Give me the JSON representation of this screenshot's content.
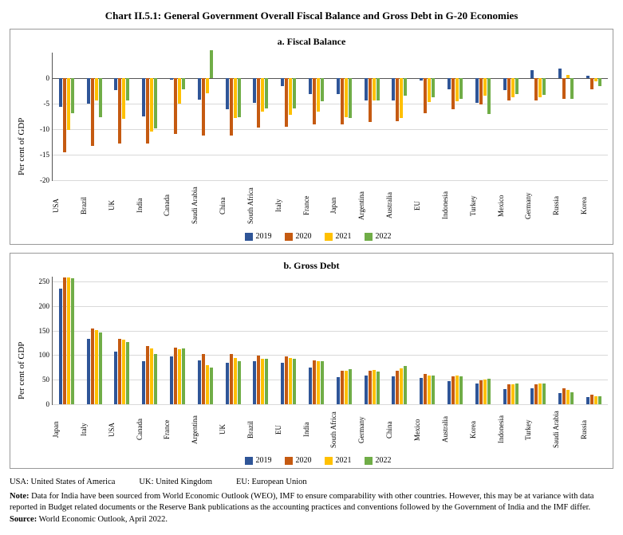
{
  "title": "Chart II.5.1: General Government Overall Fiscal Balance and Gross Debt in G-20 Economies",
  "colors": {
    "2019": "#2f5597",
    "2020": "#c55a11",
    "2021": "#ffc000",
    "2022": "#70ad47",
    "grid": "#d9d9d9",
    "border": "#999999"
  },
  "legend": [
    {
      "label": "2019",
      "colorKey": "2019"
    },
    {
      "label": "2020",
      "colorKey": "2020"
    },
    {
      "label": "2021",
      "colorKey": "2021"
    },
    {
      "label": "2022",
      "colorKey": "2022"
    }
  ],
  "chartA": {
    "subtitle": "a. Fiscal Balance",
    "ylabel": "Per cent of GDP",
    "ylim": [
      -20,
      5
    ],
    "yticks": [
      -20,
      -15,
      -10,
      -5,
      0
    ],
    "countries": [
      "USA",
      "Brazil",
      "UK",
      "India",
      "Canada",
      "Saudi Arabia",
      "China",
      "South Africa",
      "Italy",
      "France",
      "Japan",
      "Argentina",
      "Australia",
      "EU",
      "Indonesia",
      "Turkey",
      "Mexico",
      "Germany",
      "Russia",
      "Korea"
    ],
    "series": {
      "2019": [
        -5.7,
        -5.0,
        -2.3,
        -7.5,
        -0.3,
        -4.2,
        -6.1,
        -4.8,
        -1.5,
        -3.1,
        -3.1,
        -4.4,
        -4.4,
        -0.5,
        -2.2,
        -4.8,
        -2.3,
        1.5,
        1.9,
        0.4
      ],
      "2020": [
        -14.5,
        -13.3,
        -12.8,
        -12.8,
        -10.9,
        -11.3,
        -11.2,
        -9.7,
        -9.6,
        -9.1,
        -9.0,
        -8.6,
        -8.5,
        -6.9,
        -6.1,
        -5.1,
        -4.4,
        -4.3,
        -4.0,
        -2.2
      ],
      "2021": [
        -10.2,
        -4.4,
        -8.0,
        -10.4,
        -5.0,
        -3.0,
        -7.8,
        -6.5,
        -7.2,
        -6.5,
        -7.6,
        -4.3,
        -7.8,
        -4.7,
        -4.6,
        -3.5,
        -3.8,
        -3.7,
        0.7,
        -0.6
      ],
      "2022": [
        -6.9,
        -7.6,
        -4.3,
        -9.9,
        -2.2,
        5.5,
        -7.7,
        -6.0,
        -6.0,
        -4.6,
        -7.8,
        -4.3,
        -3.5,
        -3.8,
        -4.0,
        -7.0,
        -3.2,
        -3.3,
        -4.0,
        -1.5
      ]
    }
  },
  "chartB": {
    "subtitle": "b. Gross Debt",
    "ylabel": "Per cent of GDP",
    "ylim": [
      0,
      260
    ],
    "yticks": [
      0,
      50,
      100,
      150,
      200,
      250
    ],
    "countries": [
      "Japan",
      "Italy",
      "USA",
      "Canada",
      "France",
      "Argentina",
      "UK",
      "Brazil",
      "EU",
      "India",
      "South Africa",
      "Germany",
      "China",
      "Mexico",
      "Australia",
      "Korea",
      "Indonesia",
      "Turkey",
      "Saudi Arabia",
      "Russia"
    ],
    "series": {
      "2019": [
        236,
        134,
        108,
        87,
        97,
        89,
        85,
        88,
        84,
        75,
        56,
        59,
        57,
        53,
        47,
        42,
        31,
        33,
        23,
        14
      ],
      "2020": [
        259,
        155,
        134,
        118,
        115,
        103,
        103,
        99,
        97,
        90,
        69,
        69,
        68,
        61,
        57,
        49,
        40,
        40,
        33,
        19
      ],
      "2021": [
        258,
        151,
        132,
        113,
        112,
        80,
        95,
        93,
        95,
        87,
        69,
        70,
        73,
        58,
        59,
        50,
        41,
        42,
        30,
        17
      ],
      "2022": [
        256,
        147,
        126,
        102,
        113,
        75,
        88,
        92,
        93,
        87,
        71,
        67,
        78,
        58,
        57,
        52,
        43,
        42,
        24,
        17
      ]
    }
  },
  "abbrev": {
    "usa": "USA: United States of America",
    "uk": "UK: United Kingdom",
    "eu": "EU: European Union"
  },
  "note_label": "Note:",
  "note": " Data for India have been sourced from World Economic Outlook (WEO), IMF to ensure comparability with other countries. However, this may be at variance with data reported in Budget related documents or the Reserve Bank publications as the accounting practices and conventions followed by the Government of India and the IMF differ.",
  "source_label": "Source:",
  "source": " World Economic Outlook, April 2022."
}
